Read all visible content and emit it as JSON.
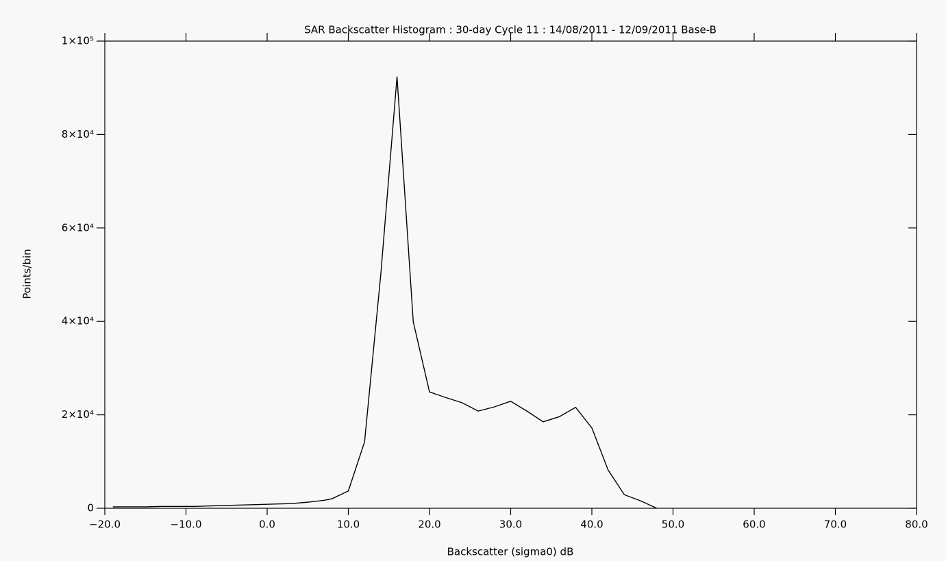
{
  "chart_data": {
    "type": "line",
    "title": "SAR Backscatter Histogram : 30-day Cycle 11 : 14/08/2011 - 12/09/2011 Base-B",
    "x_label": "Backscatter (sigma0) dB",
    "y_label": "Points/bin",
    "x": [
      -19,
      -17,
      -15,
      -13,
      -11,
      -9,
      -7,
      -5,
      -3,
      -1,
      1,
      3,
      5,
      7,
      8,
      10,
      12,
      14,
      16,
      18,
      20,
      22,
      24,
      26,
      28,
      30,
      32,
      34,
      36,
      38,
      40,
      42,
      44,
      46,
      48
    ],
    "series": [
      {
        "name": "Points/bin",
        "color": "#000000",
        "values": [
          300,
          300,
          300,
          400,
          400,
          400,
          500,
          600,
          700,
          800,
          900,
          1000,
          1300,
          1700,
          2050,
          3700,
          14200,
          50100,
          92400,
          39900,
          24900,
          23700,
          22600,
          20800,
          21700,
          22900,
          20800,
          18500,
          19600,
          21600,
          17200,
          8200,
          2900,
          1600,
          0
        ]
      }
    ],
    "xlim": [
      -20,
      80
    ],
    "ylim": [
      0,
      100000
    ],
    "xticks": [
      {
        "value": -20,
        "label": "−20.0"
      },
      {
        "value": -10,
        "label": "−10.0"
      },
      {
        "value": 0,
        "label": "0.0"
      },
      {
        "value": 10,
        "label": "10.0"
      },
      {
        "value": 20,
        "label": "20.0"
      },
      {
        "value": 30,
        "label": "30.0"
      },
      {
        "value": 40,
        "label": "40.0"
      },
      {
        "value": 50,
        "label": "50.0"
      },
      {
        "value": 60,
        "label": "60.0"
      },
      {
        "value": 70,
        "label": "70.0"
      },
      {
        "value": 80,
        "label": "80.0"
      }
    ],
    "yticks": [
      0,
      {
        "value": 20000,
        "label": "2×10⁴"
      },
      {
        "value": 40000,
        "label": "4×10⁴"
      },
      {
        "value": 60000,
        "label": "6×10⁴"
      },
      {
        "value": 80000,
        "label": "8×10⁴"
      },
      {
        "value": 100000,
        "label": "1×10⁵"
      }
    ],
    "grid": false
  }
}
